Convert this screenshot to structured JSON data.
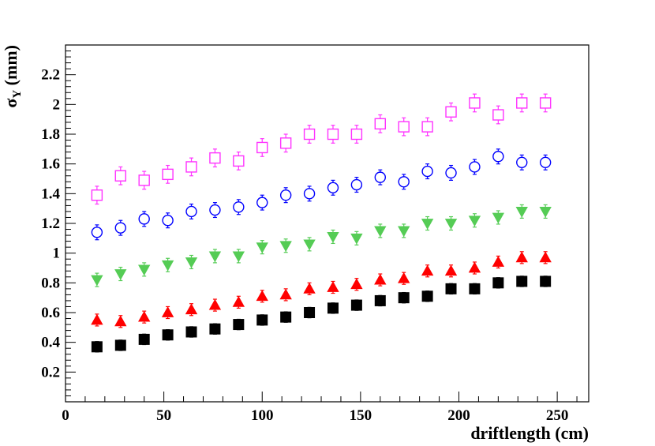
{
  "chart_data": {
    "type": "scatter",
    "xlabel": "driftlength (cm)",
    "ylabel_symbol": "σ",
    "ylabel_sub": "Y",
    "ylabel_unit": " (mm)",
    "xlim": [
      0,
      266
    ],
    "ylim": [
      0,
      2.4
    ],
    "x_ticks": [
      0,
      50,
      100,
      150,
      200,
      250
    ],
    "y_ticks": [
      0.2,
      0.4,
      0.6,
      0.8,
      1,
      1.2,
      1.4,
      1.6,
      1.8,
      2,
      2.2
    ],
    "x_tick_labels": [
      "0",
      "50",
      "100",
      "150",
      "200",
      "250"
    ],
    "y_tick_labels": [
      "0.2",
      "0.4",
      "0.6",
      "0.8",
      "1",
      "1.2",
      "1.4",
      "1.6",
      "1.8",
      "2",
      "2.2"
    ],
    "x": [
      16,
      28,
      40,
      52,
      64,
      76,
      88,
      100,
      112,
      124,
      136,
      148,
      160,
      172,
      184,
      196,
      208,
      220,
      232,
      244
    ],
    "series": [
      {
        "name": "open-square-magenta",
        "marker": "open-square",
        "color": "#ff33ff",
        "values": [
          1.39,
          1.52,
          1.49,
          1.53,
          1.58,
          1.64,
          1.62,
          1.71,
          1.74,
          1.8,
          1.8,
          1.8,
          1.87,
          1.85,
          1.85,
          1.95,
          2.01,
          1.93,
          2.01,
          2.01
        ],
        "errors": [
          0.06,
          0.06,
          0.06,
          0.06,
          0.06,
          0.06,
          0.06,
          0.06,
          0.06,
          0.06,
          0.06,
          0.06,
          0.06,
          0.06,
          0.06,
          0.06,
          0.06,
          0.06,
          0.06,
          0.06
        ]
      },
      {
        "name": "open-circle-blue",
        "marker": "open-circle",
        "color": "#0000ff",
        "values": [
          1.14,
          1.17,
          1.23,
          1.22,
          1.28,
          1.29,
          1.31,
          1.34,
          1.39,
          1.4,
          1.44,
          1.46,
          1.51,
          1.48,
          1.55,
          1.54,
          1.58,
          1.65,
          1.61,
          1.61
        ],
        "errors": [
          0.05,
          0.05,
          0.05,
          0.05,
          0.05,
          0.05,
          0.05,
          0.05,
          0.05,
          0.05,
          0.05,
          0.05,
          0.05,
          0.05,
          0.05,
          0.05,
          0.05,
          0.05,
          0.05,
          0.05
        ]
      },
      {
        "name": "down-triangle-green",
        "marker": "down-triangle",
        "color": "#55cc55",
        "values": [
          0.82,
          0.86,
          0.89,
          0.92,
          0.94,
          0.98,
          0.98,
          1.04,
          1.05,
          1.06,
          1.11,
          1.1,
          1.15,
          1.15,
          1.2,
          1.2,
          1.22,
          1.24,
          1.28,
          1.28
        ],
        "errors": [
          0.045,
          0.045,
          0.045,
          0.045,
          0.045,
          0.045,
          0.045,
          0.045,
          0.045,
          0.045,
          0.045,
          0.045,
          0.045,
          0.045,
          0.045,
          0.045,
          0.045,
          0.045,
          0.045,
          0.045
        ]
      },
      {
        "name": "up-triangle-red",
        "marker": "up-triangle",
        "color": "#ff0000",
        "values": [
          0.55,
          0.54,
          0.57,
          0.6,
          0.62,
          0.65,
          0.67,
          0.71,
          0.72,
          0.76,
          0.77,
          0.79,
          0.82,
          0.83,
          0.88,
          0.88,
          0.9,
          0.94,
          0.97,
          0.97
        ],
        "errors": [
          0.04,
          0.04,
          0.04,
          0.04,
          0.04,
          0.04,
          0.04,
          0.04,
          0.04,
          0.04,
          0.04,
          0.04,
          0.04,
          0.04,
          0.04,
          0.04,
          0.04,
          0.04,
          0.04,
          0.04
        ]
      },
      {
        "name": "filled-square-black",
        "marker": "filled-square",
        "color": "#000000",
        "values": [
          0.37,
          0.38,
          0.42,
          0.45,
          0.47,
          0.49,
          0.52,
          0.55,
          0.57,
          0.6,
          0.63,
          0.65,
          0.68,
          0.7,
          0.71,
          0.76,
          0.76,
          0.8,
          0.81,
          0.81
        ],
        "errors": [
          0.035,
          0.035,
          0.035,
          0.035,
          0.035,
          0.035,
          0.035,
          0.035,
          0.035,
          0.035,
          0.035,
          0.035,
          0.035,
          0.035,
          0.035,
          0.035,
          0.035,
          0.035,
          0.035,
          0.035
        ]
      }
    ]
  }
}
